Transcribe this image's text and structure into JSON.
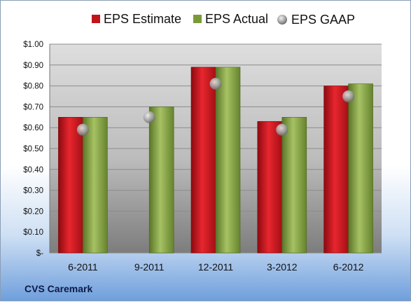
{
  "chart_data": {
    "type": "bar",
    "categories": [
      "6-2011",
      "9-2011",
      "12-2011",
      "3-2012",
      "6-2012"
    ],
    "series": [
      {
        "name": "EPS Estimate",
        "kind": "bar",
        "color": "#c0141b",
        "values": [
          0.65,
          null,
          0.89,
          0.63,
          0.8
        ]
      },
      {
        "name": "EPS Actual",
        "kind": "bar",
        "color": "#7a9a3a",
        "values": [
          0.65,
          0.7,
          0.89,
          0.65,
          0.81
        ]
      },
      {
        "name": "EPS GAAP",
        "kind": "marker",
        "color": "#a9a9a9",
        "values": [
          0.59,
          0.65,
          0.81,
          0.59,
          0.75
        ]
      }
    ],
    "y_ticks": [
      {
        "value": 0.0,
        "label": "$-"
      },
      {
        "value": 0.1,
        "label": "$0.10"
      },
      {
        "value": 0.2,
        "label": "$0.20"
      },
      {
        "value": 0.3,
        "label": "$0.30"
      },
      {
        "value": 0.4,
        "label": "$0.40"
      },
      {
        "value": 0.5,
        "label": "$0.50"
      },
      {
        "value": 0.6,
        "label": "$0.60"
      },
      {
        "value": 0.7,
        "label": "$0.70"
      },
      {
        "value": 0.8,
        "label": "$0.80"
      },
      {
        "value": 0.9,
        "label": "$0.90"
      },
      {
        "value": 1.0,
        "label": "$1.00"
      }
    ],
    "ylim": [
      0,
      1.0
    ],
    "grid": true,
    "legend_position": "top",
    "footer": "CVS Caremark"
  }
}
